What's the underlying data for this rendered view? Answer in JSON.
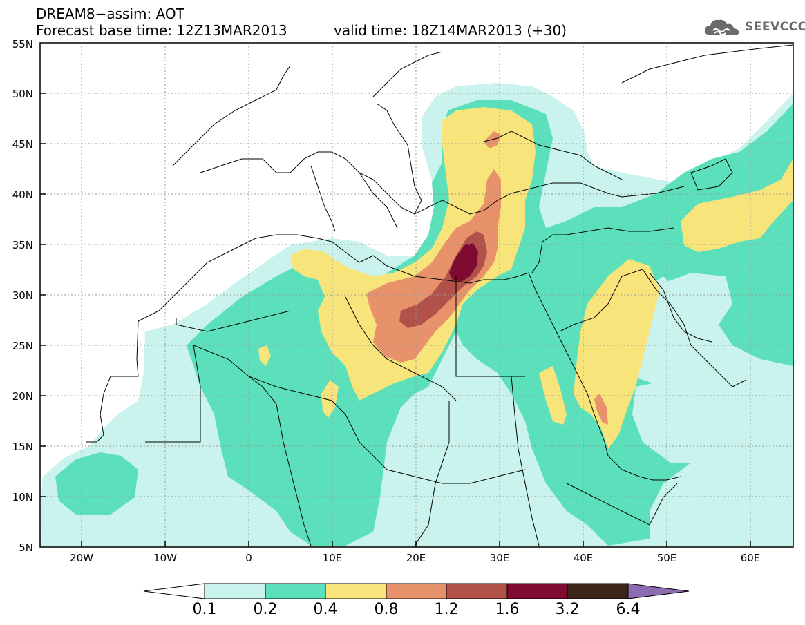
{
  "header": {
    "line1": "DREAM8−assim: AOT",
    "line2": "Forecast base time: 12Z13MAR2013",
    "valid": "valid time: 18Z14MAR2013 (+30)"
  },
  "logo": {
    "text": "SEEVCCC",
    "icon": "cloud-icon"
  },
  "map": {
    "lon_range": [
      -25,
      65
    ],
    "lat_range": [
      5,
      55
    ],
    "lat_labels": [
      "5N",
      "10N",
      "15N",
      "20N",
      "25N",
      "30N",
      "35N",
      "40N",
      "45N",
      "50N",
      "55N"
    ],
    "lon_labels": [
      "20W",
      "10W",
      "0",
      "10E",
      "20E",
      "30E",
      "40E",
      "50E",
      "60E"
    ],
    "variable": "AOT",
    "max_region": "eastern Mediterranean / Libya-Egypt coast"
  },
  "colorbar": {
    "labels": [
      "0.1",
      "0.2",
      "0.4",
      "0.8",
      "1.2",
      "1.6",
      "3.2",
      "6.4"
    ],
    "colors": [
      "#ffffff",
      "#c9f3ec",
      "#5ce0bc",
      "#f7e57b",
      "#e8926c",
      "#b1524a",
      "#7f0b30",
      "#3a2518",
      "#8c6bb1"
    ]
  }
}
